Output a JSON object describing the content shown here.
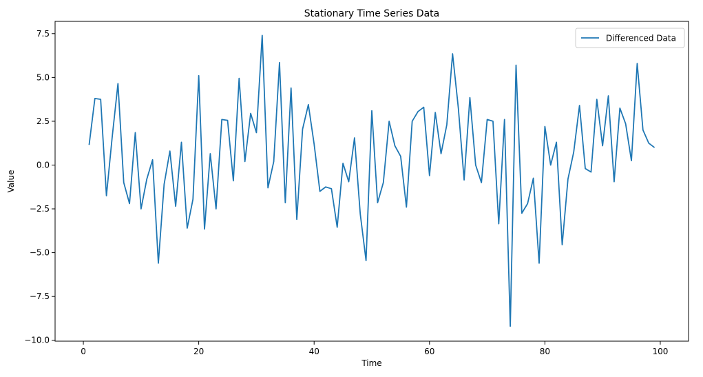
{
  "chart_data": {
    "type": "line",
    "title": "Stationary Time Series Data",
    "xlabel": "Time",
    "ylabel": "Value",
    "xlim": [
      -4.9,
      104.9
    ],
    "ylim": [
      -10.05,
      8.2
    ],
    "xticks": [
      0,
      20,
      40,
      60,
      80,
      100
    ],
    "yticks": [
      -10.0,
      -7.5,
      -5.0,
      -2.5,
      0.0,
      2.5,
      5.0,
      7.5
    ],
    "xtick_labels": [
      "0",
      "20",
      "40",
      "60",
      "80",
      "100"
    ],
    "ytick_labels": [
      "−10.0",
      "−7.5",
      "−5.0",
      "−2.5",
      "0.0",
      "2.5",
      "5.0",
      "7.5"
    ],
    "grid": false,
    "legend_position": "top-right",
    "series": [
      {
        "name": "Differenced Data",
        "color": "#1f77b4",
        "x": [
          1,
          2,
          3,
          4,
          5,
          6,
          7,
          8,
          9,
          10,
          11,
          12,
          13,
          14,
          15,
          16,
          17,
          18,
          19,
          20,
          21,
          22,
          23,
          24,
          25,
          26,
          27,
          28,
          29,
          30,
          31,
          32,
          33,
          34,
          35,
          36,
          37,
          38,
          39,
          40,
          41,
          42,
          43,
          44,
          45,
          46,
          47,
          48,
          49,
          50,
          51,
          52,
          53,
          54,
          55,
          56,
          57,
          58,
          59,
          60,
          61,
          62,
          63,
          64,
          65,
          66,
          67,
          68,
          69,
          70,
          71,
          72,
          73,
          74,
          75,
          76,
          77,
          78,
          79,
          80,
          81,
          82,
          83,
          84,
          85,
          86,
          87,
          88,
          89,
          90,
          91,
          92,
          93,
          94,
          95,
          96,
          97,
          98,
          99
        ],
        "values": [
          1.15,
          3.8,
          3.75,
          -1.75,
          1.6,
          4.65,
          -1.0,
          -2.2,
          1.85,
          -2.5,
          -0.8,
          0.3,
          -5.6,
          -1.1,
          0.8,
          -2.35,
          1.3,
          -3.6,
          -1.95,
          5.1,
          -3.65,
          0.65,
          -2.5,
          2.6,
          2.55,
          -0.9,
          4.95,
          0.2,
          2.95,
          1.85,
          7.4,
          -1.3,
          0.2,
          5.85,
          -2.15,
          4.4,
          -3.1,
          2.05,
          3.45,
          1.2,
          -1.5,
          -1.25,
          -1.35,
          -3.55,
          0.1,
          -0.95,
          1.55,
          -2.8,
          -5.45,
          3.1,
          -2.15,
          -1.0,
          2.5,
          1.1,
          0.5,
          -2.4,
          2.5,
          3.05,
          3.3,
          -0.6,
          3.0,
          0.65,
          2.3,
          6.35,
          3.25,
          -0.85,
          3.85,
          0.0,
          -1.0,
          2.6,
          2.5,
          -3.35,
          2.6,
          -9.2,
          5.7,
          -2.75,
          -2.2,
          -0.75,
          -5.6,
          2.2,
          0.0,
          1.3,
          -4.55,
          -0.8,
          0.75,
          3.4,
          -0.2,
          -0.4,
          3.75,
          1.1,
          3.95,
          -0.95,
          3.25,
          2.35,
          0.25,
          5.8,
          2.0,
          1.25,
          1.0
        ]
      }
    ]
  }
}
